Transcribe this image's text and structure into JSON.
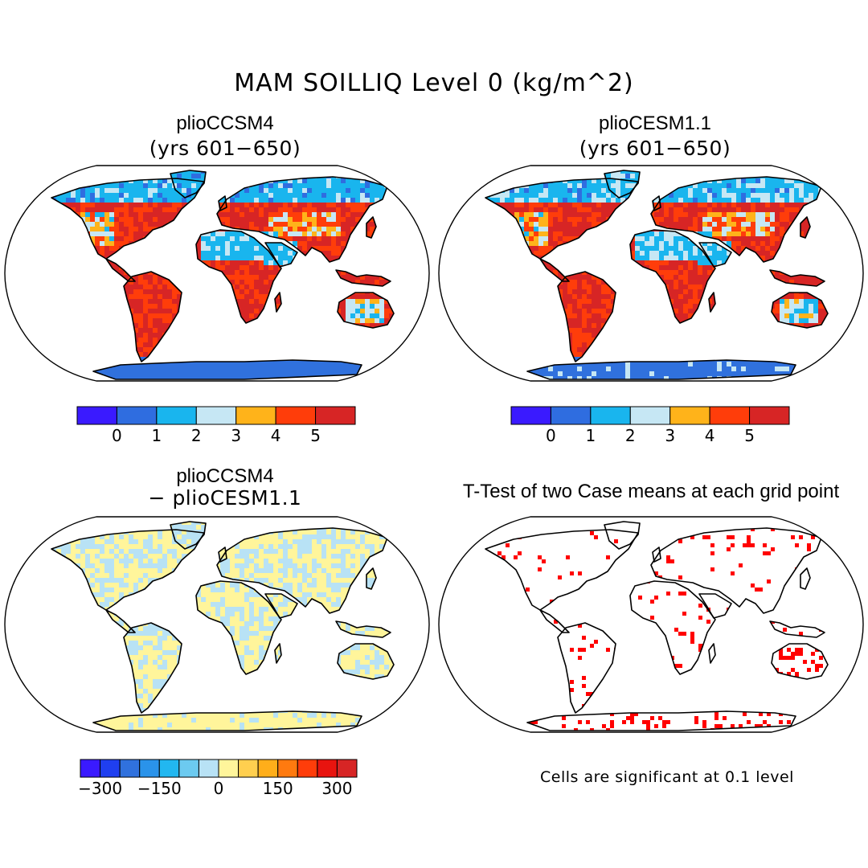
{
  "title": "MAM SOILLIQ Level 0 (kg/m^2)",
  "panels": [
    {
      "id": "p1",
      "title": "plioCCSM4",
      "subtitle": "(yrs 601−650)",
      "kind": "field"
    },
    {
      "id": "p2",
      "title": "plioCESM1.1",
      "subtitle": "(yrs 601−650)",
      "kind": "field"
    },
    {
      "id": "p3",
      "title": "plioCCSM4",
      "subtitle": "− plioCESM1.1",
      "kind": "diff"
    },
    {
      "id": "p4",
      "title": "T-Test of two Case means at each grid point",
      "subtitle": "",
      "kind": "ttest"
    }
  ],
  "colorbar_field": {
    "colors": [
      "#3a1aff",
      "#2f6de0",
      "#19b5ee",
      "#c6e7f4",
      "#ffb31a",
      "#ff3d0a",
      "#d72525"
    ],
    "labels": [
      "0",
      "1",
      "2",
      "3",
      "4",
      "5"
    ]
  },
  "colorbar_diff": {
    "colors": [
      "#3a1aff",
      "#1f3ff0",
      "#3071dd",
      "#2a93ea",
      "#22b7f0",
      "#6ccaf0",
      "#b8e2f5",
      "#fff59b",
      "#ffcf4f",
      "#ffae1a",
      "#ff7a0f",
      "#ff3d0a",
      "#e8140f",
      "#d72525"
    ],
    "labels": [
      "−300",
      "−150",
      "0",
      "150",
      "300"
    ]
  },
  "significance_note": "Cells are significant at 0.1 level",
  "colors": {
    "ice": "#3071dd",
    "sig": "#ff0000",
    "ocean": "#ffffff",
    "outline": "#000000"
  }
}
